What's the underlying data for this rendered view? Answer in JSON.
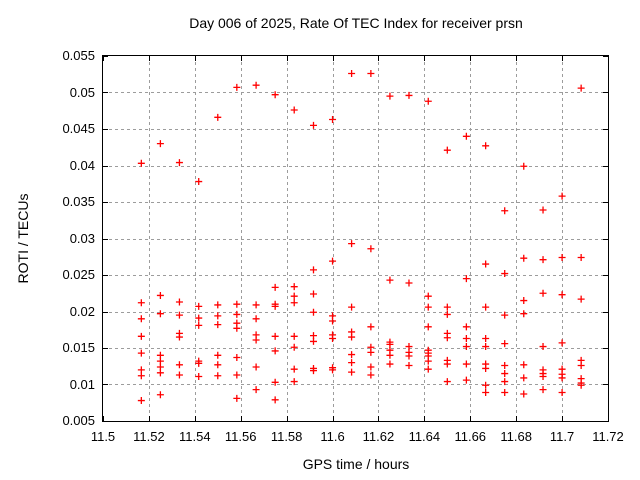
{
  "window": {
    "background": "#ffffff"
  },
  "colors": {
    "marker": "#ff0000",
    "grid": "#9c9c9c",
    "axis": "#000000",
    "text": "#000000",
    "background": "#ffffff"
  },
  "chart_data": {
    "type": "scatter",
    "title": "Day 006 of 2025, Rate Of TEC Index for receiver prsn",
    "xlabel": "GPS time / hours",
    "ylabel": "ROTI / TECUs",
    "xlim": [
      11.5,
      11.72
    ],
    "ylim": [
      0.005,
      0.055
    ],
    "grid": true,
    "legend": "none",
    "marker": "plus",
    "marker_size": 7,
    "x_ticks": {
      "values": [
        11.5,
        11.52,
        11.54,
        11.56,
        11.58,
        11.6,
        11.62,
        11.64,
        11.66,
        11.68,
        11.7,
        11.72
      ],
      "labels": [
        "11.5",
        "11.52",
        "11.54",
        "11.56",
        "11.58",
        "11.6",
        "11.62",
        "11.64",
        "11.66",
        "11.68",
        "11.7",
        "11.72"
      ]
    },
    "y_ticks": {
      "values": [
        0.005,
        0.01,
        0.015,
        0.02,
        0.025,
        0.03,
        0.035,
        0.04,
        0.045,
        0.05,
        0.055
      ],
      "labels": [
        "0.005",
        "0.01",
        "0.015",
        "0.02",
        "0.025",
        "0.03",
        "0.035",
        "0.04",
        "0.045",
        "0.05",
        "0.055"
      ]
    },
    "series": [
      {
        "name": "ROTI",
        "points": [
          [
            11.5167,
            0.0403
          ],
          [
            11.5167,
            0.0212
          ],
          [
            11.5167,
            0.019
          ],
          [
            11.5167,
            0.0166
          ],
          [
            11.5167,
            0.0143
          ],
          [
            11.5167,
            0.012
          ],
          [
            11.5167,
            0.0112
          ],
          [
            11.5167,
            0.0078
          ],
          [
            11.525,
            0.043
          ],
          [
            11.525,
            0.0222
          ],
          [
            11.525,
            0.0197
          ],
          [
            11.525,
            0.014
          ],
          [
            11.525,
            0.0132
          ],
          [
            11.525,
            0.0124
          ],
          [
            11.525,
            0.0116
          ],
          [
            11.525,
            0.0086
          ],
          [
            11.5333,
            0.0404
          ],
          [
            11.5333,
            0.0213
          ],
          [
            11.5333,
            0.0195
          ],
          [
            11.5333,
            0.017
          ],
          [
            11.5333,
            0.0165
          ],
          [
            11.5333,
            0.0127
          ],
          [
            11.5333,
            0.0113
          ],
          [
            11.5417,
            0.0378
          ],
          [
            11.5417,
            0.0207
          ],
          [
            11.5417,
            0.0191
          ],
          [
            11.5417,
            0.0181
          ],
          [
            11.5417,
            0.0132
          ],
          [
            11.5417,
            0.0129
          ],
          [
            11.5417,
            0.0111
          ],
          [
            11.55,
            0.0466
          ],
          [
            11.55,
            0.0209
          ],
          [
            11.55,
            0.0194
          ],
          [
            11.55,
            0.0182
          ],
          [
            11.55,
            0.014
          ],
          [
            11.55,
            0.0127
          ],
          [
            11.55,
            0.0112
          ],
          [
            11.5583,
            0.0507
          ],
          [
            11.5583,
            0.021
          ],
          [
            11.5583,
            0.0196
          ],
          [
            11.5583,
            0.0184
          ],
          [
            11.5583,
            0.0177
          ],
          [
            11.5583,
            0.0137
          ],
          [
            11.5583,
            0.0113
          ],
          [
            11.5583,
            0.0081
          ],
          [
            11.5667,
            0.051
          ],
          [
            11.5667,
            0.0209
          ],
          [
            11.5667,
            0.019
          ],
          [
            11.5667,
            0.0168
          ],
          [
            11.5667,
            0.0161
          ],
          [
            11.5667,
            0.0124
          ],
          [
            11.5667,
            0.0093
          ],
          [
            11.575,
            0.0497
          ],
          [
            11.575,
            0.0233
          ],
          [
            11.575,
            0.021
          ],
          [
            11.575,
            0.0207
          ],
          [
            11.575,
            0.0166
          ],
          [
            11.575,
            0.0146
          ],
          [
            11.575,
            0.0103
          ],
          [
            11.575,
            0.0079
          ],
          [
            11.5833,
            0.0476
          ],
          [
            11.5833,
            0.0234
          ],
          [
            11.5833,
            0.0221
          ],
          [
            11.5833,
            0.0212
          ],
          [
            11.5833,
            0.0166
          ],
          [
            11.5833,
            0.0151
          ],
          [
            11.5833,
            0.0121
          ],
          [
            11.5833,
            0.0104
          ],
          [
            11.5917,
            0.0455
          ],
          [
            11.5917,
            0.0257
          ],
          [
            11.5917,
            0.0224
          ],
          [
            11.5917,
            0.0199
          ],
          [
            11.5917,
            0.0167
          ],
          [
            11.5917,
            0.0159
          ],
          [
            11.5917,
            0.0122
          ],
          [
            11.5917,
            0.0119
          ],
          [
            11.6,
            0.0463
          ],
          [
            11.6,
            0.0269
          ],
          [
            11.6,
            0.0194
          ],
          [
            11.6,
            0.0187
          ],
          [
            11.6,
            0.0168
          ],
          [
            11.6,
            0.0163
          ],
          [
            11.6,
            0.0123
          ],
          [
            11.6,
            0.012
          ],
          [
            11.6083,
            0.0526
          ],
          [
            11.6083,
            0.0293
          ],
          [
            11.6083,
            0.0206
          ],
          [
            11.6083,
            0.0172
          ],
          [
            11.6083,
            0.0165
          ],
          [
            11.6083,
            0.0141
          ],
          [
            11.6083,
            0.013
          ],
          [
            11.6083,
            0.0117
          ],
          [
            11.6167,
            0.0526
          ],
          [
            11.6167,
            0.0286
          ],
          [
            11.6167,
            0.0179
          ],
          [
            11.6167,
            0.0151
          ],
          [
            11.6167,
            0.0144
          ],
          [
            11.6167,
            0.0124
          ],
          [
            11.6167,
            0.0113
          ],
          [
            11.625,
            0.0495
          ],
          [
            11.625,
            0.0243
          ],
          [
            11.625,
            0.0158
          ],
          [
            11.625,
            0.0155
          ],
          [
            11.625,
            0.0147
          ],
          [
            11.625,
            0.014
          ],
          [
            11.625,
            0.0128
          ],
          [
            11.6333,
            0.0496
          ],
          [
            11.6333,
            0.0239
          ],
          [
            11.6333,
            0.0152
          ],
          [
            11.6333,
            0.0144
          ],
          [
            11.6333,
            0.0139
          ],
          [
            11.6333,
            0.0126
          ],
          [
            11.6417,
            0.0488
          ],
          [
            11.6417,
            0.0221
          ],
          [
            11.6417,
            0.0206
          ],
          [
            11.6417,
            0.0179
          ],
          [
            11.6417,
            0.0147
          ],
          [
            11.6417,
            0.0143
          ],
          [
            11.6417,
            0.0139
          ],
          [
            11.6417,
            0.0132
          ],
          [
            11.6417,
            0.0121
          ],
          [
            11.65,
            0.0421
          ],
          [
            11.65,
            0.0206
          ],
          [
            11.65,
            0.0196
          ],
          [
            11.65,
            0.017
          ],
          [
            11.65,
            0.0164
          ],
          [
            11.65,
            0.0133
          ],
          [
            11.65,
            0.0128
          ],
          [
            11.65,
            0.0104
          ],
          [
            11.6583,
            0.044
          ],
          [
            11.6583,
            0.0245
          ],
          [
            11.6583,
            0.0179
          ],
          [
            11.6583,
            0.0163
          ],
          [
            11.6583,
            0.0152
          ],
          [
            11.6583,
            0.0128
          ],
          [
            11.6583,
            0.0106
          ],
          [
            11.6667,
            0.0427
          ],
          [
            11.6667,
            0.0265
          ],
          [
            11.6667,
            0.0206
          ],
          [
            11.6667,
            0.0163
          ],
          [
            11.6667,
            0.0152
          ],
          [
            11.6667,
            0.0128
          ],
          [
            11.6667,
            0.0122
          ],
          [
            11.6667,
            0.0099
          ],
          [
            11.6667,
            0.0089
          ],
          [
            11.675,
            0.0338
          ],
          [
            11.675,
            0.0252
          ],
          [
            11.675,
            0.0195
          ],
          [
            11.675,
            0.0156
          ],
          [
            11.675,
            0.0126
          ],
          [
            11.675,
            0.0115
          ],
          [
            11.675,
            0.0104
          ],
          [
            11.675,
            0.0089
          ],
          [
            11.6833,
            0.0399
          ],
          [
            11.6833,
            0.0273
          ],
          [
            11.6833,
            0.0215
          ],
          [
            11.6833,
            0.0197
          ],
          [
            11.6833,
            0.0127
          ],
          [
            11.6833,
            0.0109
          ],
          [
            11.6833,
            0.0087
          ],
          [
            11.6917,
            0.0339
          ],
          [
            11.6917,
            0.0271
          ],
          [
            11.6917,
            0.0225
          ],
          [
            11.6917,
            0.0152
          ],
          [
            11.6917,
            0.012
          ],
          [
            11.6917,
            0.0115
          ],
          [
            11.6917,
            0.0111
          ],
          [
            11.6917,
            0.0093
          ],
          [
            11.7,
            0.0358
          ],
          [
            11.7,
            0.0274
          ],
          [
            11.7,
            0.0223
          ],
          [
            11.7,
            0.0157
          ],
          [
            11.7,
            0.0121
          ],
          [
            11.7,
            0.0114
          ],
          [
            11.7,
            0.0109
          ],
          [
            11.7,
            0.0089
          ],
          [
            11.7083,
            0.0506
          ],
          [
            11.7083,
            0.0274
          ],
          [
            11.7083,
            0.0217
          ],
          [
            11.7083,
            0.0133
          ],
          [
            11.7083,
            0.0126
          ],
          [
            11.7083,
            0.0108
          ],
          [
            11.7083,
            0.0102
          ],
          [
            11.7083,
            0.0099
          ]
        ]
      }
    ]
  }
}
